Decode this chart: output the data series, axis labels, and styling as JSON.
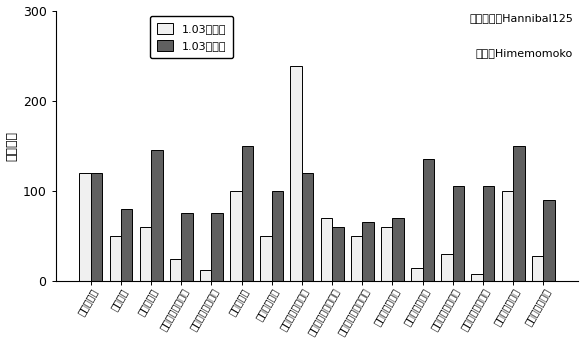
{
  "ylabel": "躯干伤害",
  "legend_before": "1.03补丁前",
  "legend_after": "1.03补丁后",
  "annotation_line1": "数据挖掘：Hannibal125",
  "annotation_line2": "制图：Himemomoko",
  "categories": [
    "不蓄力拜年",
    "飞渡浮舟",
    "飞渡旋涡云",
    "著名十字斩（纸）",
    "著名十字斩（无）",
    "蓄力不死斩",
    "不蓄力不死斩",
    "仙峰脚（打下段）",
    "仙峰脚（普通全套）",
    "菩萨脚（普通全套）",
    "蓄力龙闪（纸）",
    "蓄力龙闪（无）",
    "不蓄力龙闪（纸）",
    "不蓄力龙闪（无）",
    "秘传一心（纸）",
    "秘传一心（无）"
  ],
  "values_before": [
    120,
    50,
    60,
    25,
    12,
    100,
    50,
    238,
    70,
    50,
    60,
    15,
    30,
    8,
    100,
    28
  ],
  "values_after": [
    120,
    80,
    145,
    75,
    75,
    150,
    100,
    120,
    60,
    65,
    70,
    135,
    105,
    105,
    150,
    90
  ],
  "color_before": "#f0f0f0",
  "color_after": "#606060",
  "bar_edge_color": "#000000",
  "ylim": [
    0,
    300
  ],
  "yticks": [
    0,
    100,
    200,
    300
  ],
  "figsize": [
    5.84,
    3.43
  ],
  "dpi": 100
}
